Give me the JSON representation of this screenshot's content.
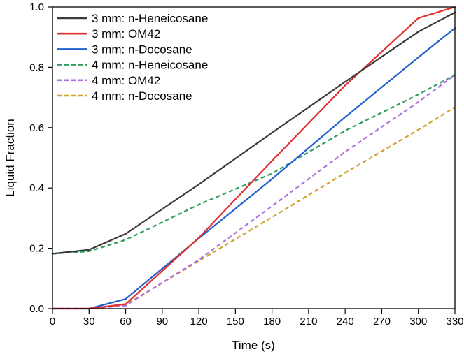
{
  "chart_data": {
    "type": "line",
    "title": "",
    "xlabel": "Time (s)",
    "ylabel": "Liquid Fraction",
    "xlim": [
      0,
      330
    ],
    "ylim": [
      0,
      1.0
    ],
    "x_ticks": [
      0,
      30,
      60,
      90,
      120,
      150,
      180,
      210,
      240,
      270,
      300,
      330
    ],
    "x_tick_labels": [
      "0",
      "30",
      "60",
      "90",
      "120",
      "150",
      "180",
      "210",
      "240",
      "270",
      "300",
      "330"
    ],
    "y_ticks": [
      0.0,
      0.2,
      0.4,
      0.6,
      0.8,
      1.0
    ],
    "y_tick_labels": [
      "0.0",
      "0.2",
      "0.4",
      "0.6",
      "0.8",
      "1.0"
    ],
    "grid": false,
    "legend_position": "top-left",
    "x": [
      0,
      30,
      60,
      120,
      180,
      240,
      300,
      330
    ],
    "series": [
      {
        "name": "3 mm: n-Heneicosane",
        "color": "#3a3a3a",
        "dash": "solid",
        "values": [
          0.182,
          0.195,
          0.248,
          0.412,
          0.583,
          0.752,
          0.918,
          0.982
        ]
      },
      {
        "name": "3 mm: OM42",
        "color": "#e03030",
        "dash": "solid",
        "values": [
          0.0,
          0.0,
          0.015,
          0.235,
          0.49,
          0.74,
          0.963,
          1.0
        ]
      },
      {
        "name": "3 mm: n-Docosane",
        "color": "#2060c8",
        "dash": "solid",
        "values": [
          0.0,
          0.0,
          0.032,
          0.233,
          0.43,
          0.635,
          0.833,
          0.93
        ]
      },
      {
        "name": "4 mm: n-Heneicosane",
        "color": "#2e9e5e",
        "dash": "dashed",
        "values": [
          0.182,
          0.19,
          0.228,
          0.345,
          0.448,
          0.59,
          0.71,
          0.775
        ]
      },
      {
        "name": "4 mm: OM42",
        "color": "#b070e0",
        "dash": "dashed",
        "values": [
          0.0,
          0.0,
          0.01,
          0.162,
          0.34,
          0.52,
          0.685,
          0.775
        ]
      },
      {
        "name": "4 mm: n-Docosane",
        "color": "#d0a020",
        "dash": "dashed",
        "values": [
          0.0,
          0.0,
          0.013,
          0.158,
          0.303,
          0.45,
          0.593,
          0.668
        ]
      }
    ]
  }
}
